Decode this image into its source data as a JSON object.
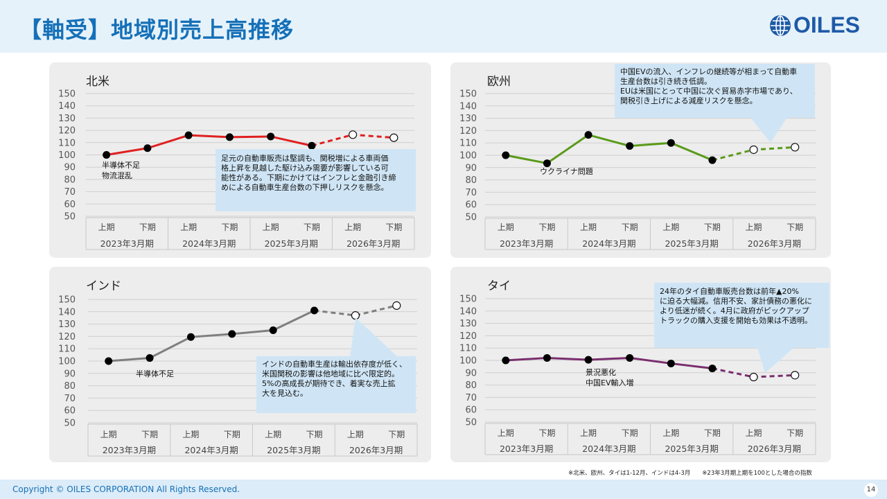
{
  "title": "【軸受】地域別売上高推移",
  "logo_text": "OILES",
  "periods": [
    "上期",
    "下期",
    "上期",
    "下期",
    "上期",
    "下期",
    "上期",
    "下期"
  ],
  "fiscal_years": [
    "2023年3月期",
    "2024年3月期",
    "2025年3月期",
    "2026年3月期"
  ],
  "footnote": "※北米、欧州、タイは1-12月、インドは4-3月　　※23年3月期上期を100とした場合の指数",
  "copyright": "Copyright © OILES CORPORATION All Rights Reserved.",
  "page_number": "14",
  "colors": {
    "accent": "#1570b8",
    "north_america": "#e02020",
    "europe": "#5a9a1a",
    "india": "#7f7f7f",
    "thailand": "#7a2e6e",
    "callout_bg": "#cfe5f5",
    "panel_bg": "#ededed"
  },
  "chart_data": [
    {
      "type": "line",
      "id": "north_america",
      "title": "北米",
      "ylim": [
        50,
        150
      ],
      "yticks": [
        50,
        60,
        70,
        80,
        90,
        100,
        110,
        120,
        130,
        140,
        150
      ],
      "values": [
        100,
        105.5,
        116,
        114.5,
        115,
        107.5,
        116.5,
        114
      ],
      "actual_count": 6,
      "categories": [
        "上期",
        "下期",
        "上期",
        "下期",
        "上期",
        "下期",
        "上期",
        "下期"
      ],
      "groups": [
        "2023年3月期",
        "2024年3月期",
        "2025年3月期",
        "2026年3月期"
      ]
    },
    {
      "type": "line",
      "id": "europe",
      "title": "欧州",
      "ylim": [
        50,
        150
      ],
      "yticks": [
        50,
        60,
        70,
        80,
        90,
        100,
        110,
        120,
        130,
        140,
        150
      ],
      "values": [
        100,
        93.5,
        116.5,
        107.5,
        110,
        96,
        104.5,
        106.5
      ],
      "actual_count": 6,
      "categories": [
        "上期",
        "下期",
        "上期",
        "下期",
        "上期",
        "下期",
        "上期",
        "下期"
      ],
      "groups": [
        "2023年3月期",
        "2024年3月期",
        "2025年3月期",
        "2026年3月期"
      ]
    },
    {
      "type": "line",
      "id": "india",
      "title": "インド",
      "ylim": [
        50,
        150
      ],
      "yticks": [
        50,
        60,
        70,
        80,
        90,
        100,
        110,
        120,
        130,
        140,
        150
      ],
      "values": [
        100,
        102.5,
        119.5,
        122,
        125,
        141,
        137,
        145
      ],
      "actual_count": 6,
      "categories": [
        "上期",
        "下期",
        "上期",
        "下期",
        "上期",
        "下期",
        "上期",
        "下期"
      ],
      "groups": [
        "2023年3月期",
        "2024年3月期",
        "2025年3月期",
        "2026年3月期"
      ]
    },
    {
      "type": "line",
      "id": "thailand",
      "title": "タイ",
      "ylim": [
        50,
        150
      ],
      "yticks": [
        50,
        60,
        70,
        80,
        90,
        100,
        110,
        120,
        130,
        140,
        150
      ],
      "values": [
        100,
        102,
        100.5,
        102,
        97.5,
        93.5,
        86.5,
        88
      ],
      "actual_count": 6,
      "categories": [
        "上期",
        "下期",
        "上期",
        "下期",
        "上期",
        "下期",
        "上期",
        "下期"
      ],
      "groups": [
        "2023年3月期",
        "2024年3月期",
        "2025年3月期",
        "2026年3月期"
      ]
    }
  ],
  "annotations": {
    "na_note": [
      "半導体不足",
      "物流混乱"
    ],
    "na_callout": [
      "足元の自動車販売は堅調も、関税増による車両価",
      "格上昇を見越した駆け込み需要が影響している可",
      "能性がある。下期にかけてはインフレと金融引き締",
      "めによる自動車生産台数の下押しリスクを懸念。"
    ],
    "eu_note": "ウクライナ問題",
    "eu_callout": [
      "中国EVの流入、インフレの継続等が相まって自動車",
      "生産台数は引き続き低調。",
      "EUは米国にとって中国に次ぐ貿易赤字市場であり、",
      "関税引き上げによる減産リスクを懸念。"
    ],
    "in_note": "半導体不足",
    "in_callout": [
      "インドの自動車生産は輸出依存度が低く、",
      "米国関税の影響は他地域に比べ限定的。",
      "5%の高成長が期待でき、着実な売上拡",
      "大を見込む。"
    ],
    "th_note": [
      "景況悪化",
      "中国EV輸入増"
    ],
    "th_callout": [
      "24年のタイ自動車販売台数は前年▲20%",
      "に迫る大幅減。信用不安、家計債務の悪化に",
      "より低迷が続く。4月に政府がピックアップ",
      "トラックの購入支援を開始も効果は不透明。"
    ]
  }
}
